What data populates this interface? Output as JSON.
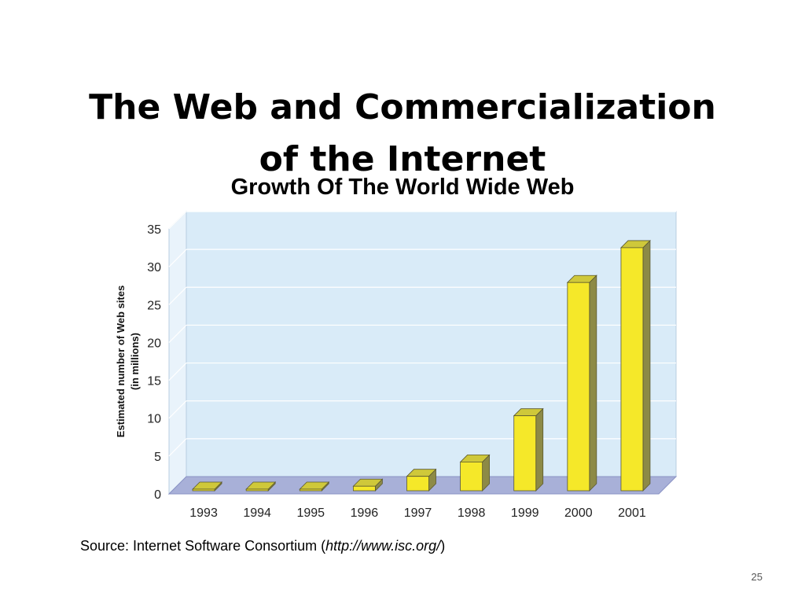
{
  "slide": {
    "title_line1": "The Web and Commercialization",
    "title_line2": "of the Internet",
    "source_prefix": "Source: Internet Software Consortium (",
    "source_url": "http://www.isc.org/",
    "source_suffix": ")",
    "page_number": "25"
  },
  "chart_data": {
    "type": "bar",
    "title": "Growth Of The World Wide Web",
    "xlabel": "",
    "ylabel": "Estimated number of Web sites\n(in millions)",
    "categories": [
      "1993",
      "1994",
      "1995",
      "1996",
      "1997",
      "1998",
      "1999",
      "2000",
      "2001"
    ],
    "values": [
      0.02,
      0.02,
      0.02,
      0.6,
      1.9,
      3.8,
      9.9,
      27.5,
      32.1
    ],
    "ylim": [
      0,
      35
    ],
    "yticks": [
      0,
      5,
      10,
      15,
      20,
      25,
      30,
      35
    ],
    "grid": true,
    "style": "3d",
    "colors": {
      "bar_front": "#f5e829",
      "bar_side": "#8d8a46",
      "bar_top": "#cfc83a",
      "wall": "#d9ebf8",
      "floor": "#a8b0d8"
    }
  }
}
